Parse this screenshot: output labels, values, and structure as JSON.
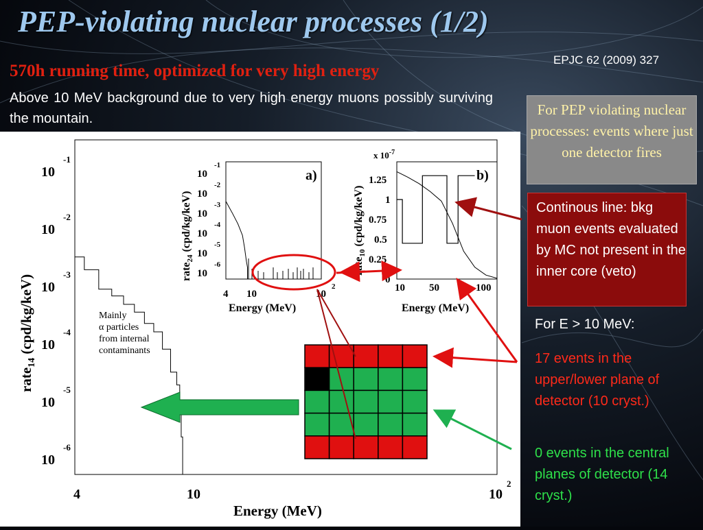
{
  "slide": {
    "title": "PEP-violating nuclear processes (1/2)",
    "reference": "EPJC 62 (2009) 327",
    "subtitle": "570h running time, optimized for very high energy",
    "intro": "Above 10 MeV  background due to very high energy muons possibly surviving the mountain.",
    "grey_box_text": "For PEP violating nuclear processes: events where just one detector fires",
    "red_box_text": "Continous line: bkg muon events evaluated by MC not present in the inner core (veto)",
    "for_e_label": "For E > 10 MeV:",
    "upper_lower_text": "17 events in the upper/lower plane of detector (10 cryst.)",
    "central_text": "0 events in the central planes of detector (14 cryst.)",
    "annotation_mainly": "Mainly",
    "annotation_alpha": "α      particles",
    "annotation_from": "from internal",
    "annotation_contaminants": "contaminants"
  },
  "colors": {
    "accent_red": "#e01010",
    "accent_green": "#1fb050",
    "crystal_black": "#000000"
  },
  "detector_grid": {
    "rows": [
      [
        "red",
        "red",
        "red",
        "red",
        "red"
      ],
      [
        "black",
        "green",
        "green",
        "green",
        "green"
      ],
      [
        "green",
        "green",
        "green",
        "green",
        "green"
      ],
      [
        "green",
        "green",
        "green",
        "green",
        "green"
      ],
      [
        "red",
        "red",
        "red",
        "red",
        "red"
      ]
    ]
  },
  "chart_data": [
    {
      "type": "line",
      "panel": "main",
      "xlabel": "Energy (MeV)",
      "ylabel": "rate14 (cpd/kg/keV)",
      "xscale": "log",
      "yscale": "log",
      "x_ticks": [
        "4",
        "10",
        "10^2"
      ],
      "y_ticks": [
        "10^-1",
        "10^-2",
        "10^-3",
        "10^-4",
        "10^-5",
        "10^-6"
      ],
      "xlim": [
        3.9,
        100
      ],
      "ylim": [
        1e-06,
        0.2
      ],
      "series": [
        {
          "x": [
            3.9,
            4.3,
            4.8,
            5.3,
            5.8,
            6.3,
            6.8,
            7.3,
            7.8,
            8.3,
            8.7,
            8.9,
            9.0,
            9.1
          ],
          "y": [
            0.002,
            0.0012,
            0.00055,
            0.00042,
            0.0003,
            0.00022,
            0.00014,
            0.0001,
            5e-05,
            2e-05,
            1.2e-05,
            4e-06,
            1.5e-06,
            1e-06
          ]
        }
      ]
    },
    {
      "type": "line",
      "panel": "a)",
      "xlabel": "Energy (MeV)",
      "ylabel": "rate24 (cpd/kg/keV)",
      "xscale": "log",
      "yscale": "log",
      "x_ticks": [
        "4",
        "10",
        "10^2"
      ],
      "y_ticks": [
        "10^-1",
        "10^-2",
        "10^-3",
        "10^-4",
        "10^-5",
        "10^-6"
      ],
      "series": [
        {
          "x": [
            4,
            5,
            6,
            7,
            7.5,
            8,
            8.3
          ],
          "y": [
            0.002,
            0.0005,
            0.00015,
            4e-05,
            1e-05,
            2e-06,
            1e-06
          ]
        }
      ]
    },
    {
      "type": "line",
      "panel": "b)",
      "xlabel": "Energy (MeV)",
      "ylabel": "rate10 (cpd/kg/keV)",
      "y_multiplier": "x 10^-7",
      "x_ticks": [
        "10",
        "50",
        "100"
      ],
      "y_ticks": [
        "0",
        "0.25",
        "0.5",
        "0.75",
        "1",
        "1.25"
      ],
      "series": [
        {
          "x": [
            10,
            20,
            30,
            40,
            50,
            60,
            70,
            80,
            90,
            100
          ],
          "y": [
            1.35,
            1.28,
            1.2,
            1.1,
            0.98,
            0.7,
            0.35,
            0.15,
            0.05,
            0.01
          ]
        },
        {
          "x": [
            10,
            15,
            15,
            33,
            33,
            55,
            55,
            65,
            65,
            80
          ],
          "y": [
            1.0,
            1.0,
            0.45,
            0.45,
            1.3,
            1.3,
            0.45,
            0.45,
            1.3,
            1.3
          ]
        }
      ]
    }
  ]
}
